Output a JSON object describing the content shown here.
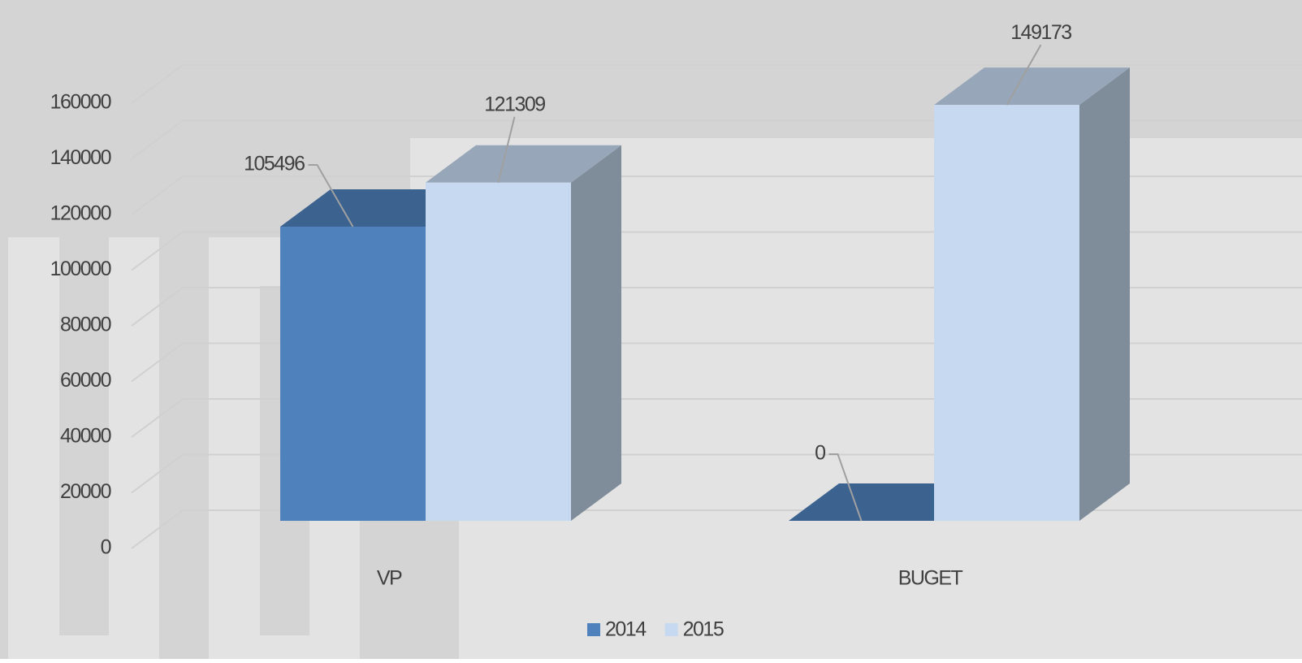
{
  "chart_data": {
    "type": "bar3d",
    "categories": [
      "VP",
      "BUGET"
    ],
    "series": [
      {
        "name": "2014",
        "color": "#4f81bd",
        "values": [
          105496,
          0
        ]
      },
      {
        "name": "2015",
        "color": "#c6d9f1",
        "values": [
          121309,
          149173
        ]
      }
    ],
    "ylim": [
      0,
      160000
    ],
    "yticks": [
      0,
      20000,
      40000,
      60000,
      80000,
      100000,
      120000,
      140000,
      160000
    ],
    "grid": true,
    "legend": "bottom"
  }
}
